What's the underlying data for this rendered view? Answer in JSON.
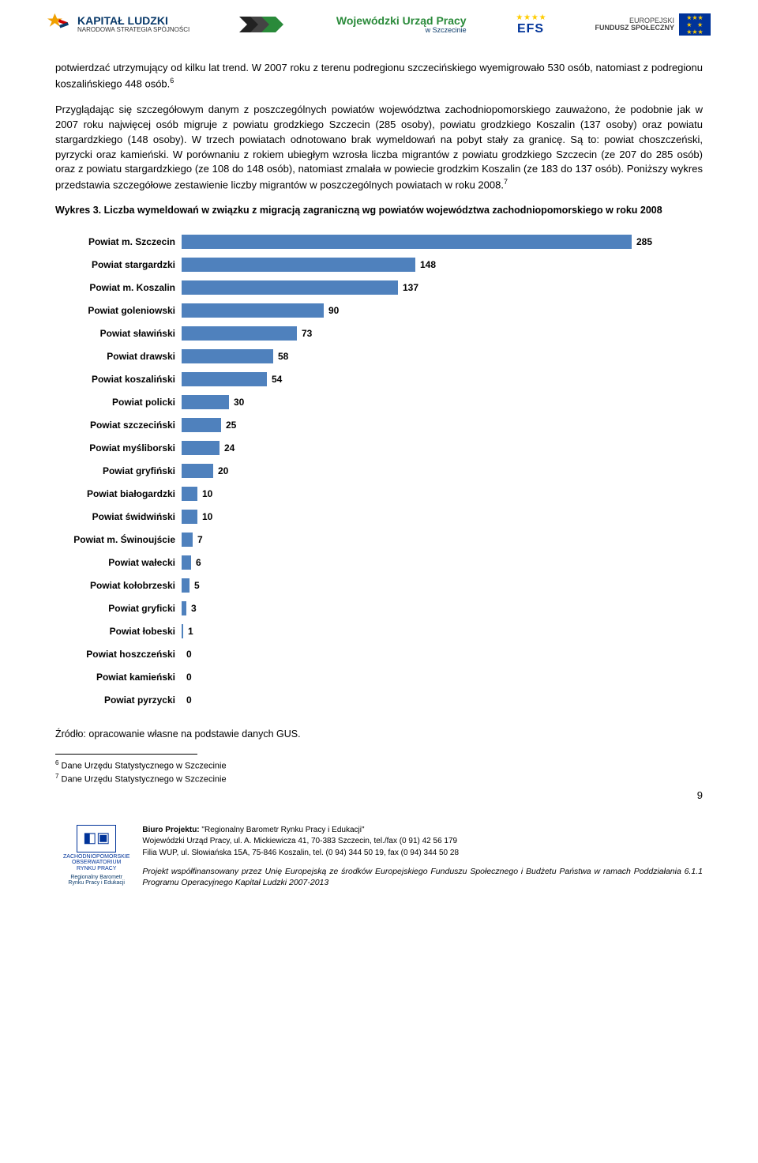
{
  "header": {
    "kapital_main": "KAPITAŁ LUDZKI",
    "kapital_sub": "NARODOWA STRATEGIA SPÓJNOŚCI",
    "wup_main": "Wojewódzki Urząd Pracy",
    "wup_sub": "w Szczecinie",
    "efs_label": "EFS",
    "eu_line1": "EUROPEJSKI",
    "eu_line2": "FUNDUSZ SPOŁECZNY"
  },
  "paragraph1": "potwierdzać utrzymujący od kilku lat trend. W 2007 roku z terenu podregionu szczecińskiego wyemigrowało 530 osób, natomiast z podregionu koszalińskiego 448 osób.",
  "sup1": "6",
  "paragraph2": "Przyglądając się szczegółowym danym z poszczególnych powiatów województwa zachodniopomorskiego zauważono, że podobnie jak w 2007 roku najwięcej osób migruje z powiatu grodzkiego Szczecin (285 osoby), powiatu grodzkiego Koszalin (137 osoby) oraz powiatu stargardzkiego (148 osoby). W trzech powiatach odnotowano brak wymeldowań na pobyt stały za granicę. Są to: powiat choszczeński, pyrzycki oraz kamieński. W porównaniu z rokiem ubiegłym wzrosła liczba migrantów z powiatu grodzkiego Szczecin (ze 207 do 285 osób) oraz z powiatu stargardzkiego (ze 108 do 148 osób), natomiast zmalała w powiecie grodzkim Koszalin (ze 183 do 137 osób). Poniższy wykres przedstawia szczegółowe zestawienie liczby migrantów w poszczególnych powiatach w roku 2008.",
  "sup2": "7",
  "chart": {
    "title": "Wykres 3. Liczba wymeldowań w związku z migracją zagraniczną wg powiatów województwa zachodniopomorskiego w roku 2008",
    "type": "bar-horizontal",
    "bar_color": "#4f81bd",
    "text_color": "#000000",
    "label_fontsize": 12,
    "value_fontsize": 12,
    "xlim": [
      0,
      285
    ],
    "rows": [
      {
        "label": "Powiat m. Szczecin",
        "value": 285
      },
      {
        "label": "Powiat stargardzki",
        "value": 148
      },
      {
        "label": "Powiat m. Koszalin",
        "value": 137
      },
      {
        "label": "Powiat goleniowski",
        "value": 90
      },
      {
        "label": "Powiat sławiński",
        "value": 73
      },
      {
        "label": "Powiat drawski",
        "value": 58
      },
      {
        "label": "Powiat koszaliński",
        "value": 54
      },
      {
        "label": "Powiat policki",
        "value": 30
      },
      {
        "label": "Powiat szczeciński",
        "value": 25
      },
      {
        "label": "Powiat myśliborski",
        "value": 24
      },
      {
        "label": "Powiat gryfiński",
        "value": 20
      },
      {
        "label": "Powiat białogardzki",
        "value": 10
      },
      {
        "label": "Powiat świdwiński",
        "value": 10
      },
      {
        "label": "Powiat m. Świnoujście",
        "value": 7
      },
      {
        "label": "Powiat wałecki",
        "value": 6
      },
      {
        "label": "Powiat kołobrzeski",
        "value": 5
      },
      {
        "label": "Powiat gryficki",
        "value": 3
      },
      {
        "label": "Powiat łobeski",
        "value": 1
      },
      {
        "label": "Powiat hoszczeński",
        "value": 0
      },
      {
        "label": "Powiat kamieński",
        "value": 0
      },
      {
        "label": "Powiat pyrzycki",
        "value": 0
      }
    ]
  },
  "source_note": "Źródło: opracowanie własne na podstawie danych GUS.",
  "footnotes": [
    {
      "num": "6",
      "text": " Dane Urzędu Statystycznego w Szczecinie"
    },
    {
      "num": "7",
      "text": " Dane Urzędu Statystycznego  w Szczecinie"
    }
  ],
  "page_number": "9",
  "footer": {
    "logo_line1": "ZACHODNIOPOMORSKIE",
    "logo_line2": "OBSERWATORIUM",
    "logo_line3": "RYNKU PRACY",
    "logo_tag1": "Regionalny  Barometr",
    "logo_tag2": "Rynku Pracy i Edukacji",
    "biuro_label": "Biuro Projektu: ",
    "biuro_name": "\"Regionalny Barometr Rynku Pracy i Edukacji\"",
    "addr1": "Wojewódzki Urząd Pracy, ul. A. Mickiewicza  41, 70-383 Szczecin, tel./fax (0 91) 42 56 179",
    "addr2": "Filia WUP, ul. Słowiańska 15A, 75-846 Koszalin, tel. (0 94) 344 50 19, fax (0 94) 344 50 28",
    "italic": "Projekt współfinansowany przez Unię Europejską ze środków Europejskiego Funduszu Społecznego i Budżetu Państwa w ramach Poddziałania 6.1.1 Programu Operacyjnego Kapitał Ludzki 2007-2013"
  }
}
